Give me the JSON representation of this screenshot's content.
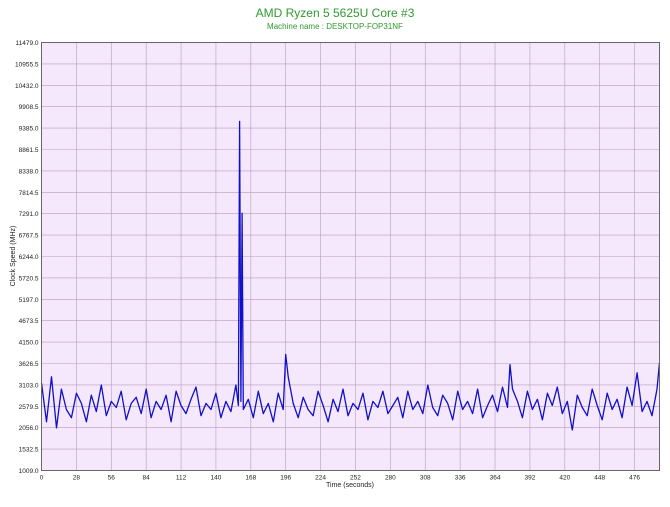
{
  "colors": {
    "title": "#2e9b2e",
    "subtitle": "#2e9b2e",
    "plot_background": "#f6e8fc",
    "grid": "#b79bbd",
    "series": "#1010c8",
    "axis_text": "#222222"
  },
  "chart_data": {
    "type": "line",
    "title": "AMD Ryzen 5 5625U Core #3",
    "subtitle": "Machine name : DESKTOP-FOP31NF",
    "xlabel": "Time (seconds)",
    "ylabel": "Clock Speed (MHz)",
    "xlim": [
      0,
      496
    ],
    "ylim": [
      1009.0,
      11479.0
    ],
    "grid": true,
    "x_ticks": [
      0,
      28,
      56,
      84,
      112,
      140,
      168,
      196,
      224,
      252,
      280,
      308,
      336,
      364,
      392,
      420,
      448,
      476
    ],
    "x_tick_labels": [
      "0",
      "28",
      "56",
      "84",
      "112",
      "140",
      "168",
      "196",
      "224",
      "252",
      "280",
      "308",
      "336",
      "364",
      "392",
      "420",
      "448",
      "476"
    ],
    "y_ticks": [
      1009.0,
      1532.5,
      2056.0,
      2579.5,
      3103.0,
      3626.5,
      4150.0,
      4673.5,
      5197.0,
      5720.5,
      6244.0,
      6767.5,
      7291.0,
      7814.5,
      8338.0,
      8861.5,
      9385.0,
      9908.5,
      10432.0,
      10955.5,
      11479.0
    ],
    "y_tick_labels": [
      "1009.0",
      "1532.5",
      "2056.0",
      "2579.5",
      "3103.0",
      "3626.5",
      "4150.0",
      "4673.5",
      "5197.0",
      "5720.5",
      "6244.0",
      "6767.5",
      "7291.0",
      "7814.5",
      "8338.0",
      "8861.5",
      "9385.0",
      "9908.5",
      "10432.0",
      "10955.5",
      "11479.0"
    ],
    "series": [
      {
        "x": [
          0,
          4,
          8,
          12,
          16,
          20,
          24,
          28,
          32,
          36,
          40,
          44,
          48,
          52,
          56,
          60,
          64,
          68,
          72,
          76,
          80,
          84,
          88,
          92,
          96,
          100,
          104,
          108,
          112,
          116,
          120,
          124,
          128,
          132,
          136,
          140,
          144,
          148,
          152,
          156,
          158,
          159,
          160,
          161,
          162,
          166,
          170,
          174,
          178,
          182,
          186,
          190,
          194,
          196,
          198,
          202,
          206,
          210,
          214,
          218,
          222,
          226,
          230,
          234,
          238,
          242,
          246,
          250,
          254,
          258,
          262,
          266,
          270,
          274,
          278,
          282,
          286,
          290,
          294,
          298,
          302,
          306,
          310,
          314,
          318,
          322,
          326,
          330,
          334,
          338,
          342,
          346,
          350,
          354,
          358,
          362,
          366,
          370,
          374,
          376,
          378,
          382,
          386,
          390,
          394,
          398,
          402,
          406,
          410,
          414,
          418,
          422,
          426,
          430,
          434,
          438,
          442,
          446,
          450,
          454,
          458,
          462,
          466,
          470,
          474,
          478,
          482,
          486,
          490,
          494,
          496
        ],
        "values": [
          3150,
          2200,
          3300,
          2050,
          3000,
          2500,
          2300,
          2900,
          2650,
          2200,
          2850,
          2450,
          3100,
          2350,
          2700,
          2550,
          2950,
          2250,
          2650,
          2800,
          2400,
          3000,
          2300,
          2700,
          2500,
          2850,
          2200,
          2950,
          2600,
          2400,
          2750,
          3050,
          2350,
          2650,
          2500,
          2900,
          2300,
          2700,
          2450,
          3100,
          2600,
          9550,
          2700,
          7300,
          2500,
          2750,
          2300,
          2950,
          2400,
          2650,
          2200,
          2900,
          2500,
          3850,
          3300,
          2650,
          2300,
          2800,
          2500,
          2350,
          2950,
          2600,
          2200,
          2750,
          2450,
          3000,
          2350,
          2650,
          2500,
          2900,
          2250,
          2700,
          2550,
          2950,
          2400,
          2600,
          2800,
          2300,
          2950,
          2500,
          2700,
          2400,
          3100,
          2550,
          2350,
          2850,
          2650,
          2250,
          2950,
          2500,
          2700,
          2400,
          3000,
          2300,
          2600,
          2850,
          2450,
          3050,
          2550,
          3600,
          3000,
          2700,
          2300,
          2950,
          2500,
          2750,
          2250,
          2900,
          2600,
          3050,
          2400,
          2700,
          2000,
          2850,
          2550,
          2350,
          3000,
          2600,
          2250,
          2900,
          2500,
          2750,
          2300,
          3050,
          2600,
          3400,
          2450,
          2700,
          2350,
          3000,
          3650
        ]
      }
    ]
  }
}
